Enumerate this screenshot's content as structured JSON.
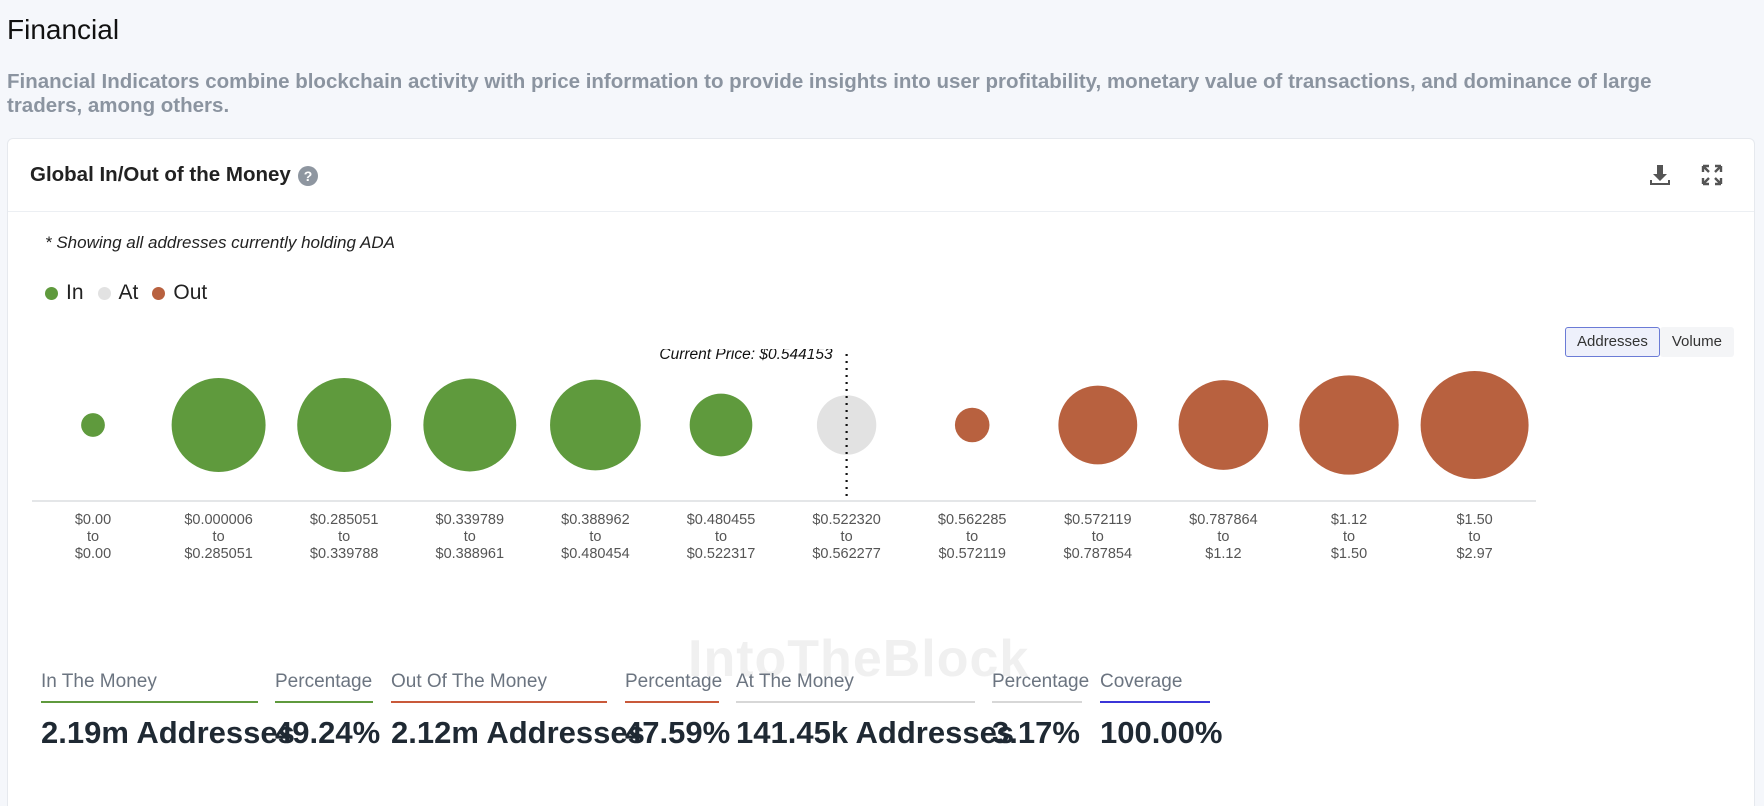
{
  "section": {
    "title": "Financial",
    "description": "Financial Indicators combine blockchain activity with price information to provide insights into user profitability, monetary value of transactions, and dominance of large traders, among others."
  },
  "card": {
    "title": "Global In/Out of the Money",
    "help_glyph": "?",
    "note": "* Showing all addresses currently holding ADA",
    "watermark": "IntoTheBlock"
  },
  "legend": [
    {
      "label": "In",
      "color": "#5f9a3d"
    },
    {
      "label": "At",
      "color": "#e2e2e2"
    },
    {
      "label": "Out",
      "color": "#b8613f"
    }
  ],
  "toggle": {
    "addresses_label": "Addresses",
    "volume_label": "Volume",
    "selected": "Addresses"
  },
  "chart_data": {
    "type": "bubble",
    "title": "Global In/Out of the Money",
    "current_price_label": "Current Price: $0.544153",
    "current_price_after_index": 6,
    "size_scale": "relative radius, 0-1",
    "clusters": [
      {
        "from": "$0.00",
        "to": "$0.00",
        "status": "in",
        "size": 0.22
      },
      {
        "from": "$0.000006",
        "to": "$0.285051",
        "status": "in",
        "size": 0.87
      },
      {
        "from": "$0.285051",
        "to": "$0.339788",
        "status": "in",
        "size": 0.87
      },
      {
        "from": "$0.339789",
        "to": "$0.388961",
        "status": "in",
        "size": 0.86
      },
      {
        "from": "$0.388962",
        "to": "$0.480454",
        "status": "in",
        "size": 0.84
      },
      {
        "from": "$0.480455",
        "to": "$0.522317",
        "status": "in",
        "size": 0.58
      },
      {
        "from": "$0.522320",
        "to": "$0.562277",
        "status": "at",
        "size": 0.55
      },
      {
        "from": "$0.562285",
        "to": "$0.572119",
        "status": "out",
        "size": 0.32
      },
      {
        "from": "$0.572119",
        "to": "$0.787854",
        "status": "out",
        "size": 0.73
      },
      {
        "from": "$0.787864",
        "to": "$1.12",
        "status": "out",
        "size": 0.83
      },
      {
        "from": "$1.12",
        "to": "$1.50",
        "status": "out",
        "size": 0.92
      },
      {
        "from": "$1.50",
        "to": "$2.97",
        "status": "out",
        "size": 1.0
      }
    ],
    "range_separator": "to",
    "colors": {
      "in": "#5f9a3d",
      "at": "#e2e2e2",
      "out": "#b8613f"
    }
  },
  "stats": [
    {
      "label": "In The Money",
      "value": "2.19m Addresses",
      "color": "#5f9a3d"
    },
    {
      "label": "Percentage",
      "value": "49.24%",
      "color": "#5f9a3d"
    },
    {
      "label": "Out Of The Money",
      "value": "2.12m Addresses",
      "color": "#c9593a"
    },
    {
      "label": "Percentage",
      "value": "47.59%",
      "color": "#c9593a"
    },
    {
      "label": "At The Money",
      "value": "141.45k Addresses",
      "color": "#d7d7d7"
    },
    {
      "label": "Percentage",
      "value": "3.17%",
      "color": "#d7d7d7"
    },
    {
      "label": "Coverage",
      "value": "100.00%",
      "color": "#3b35d8"
    }
  ]
}
